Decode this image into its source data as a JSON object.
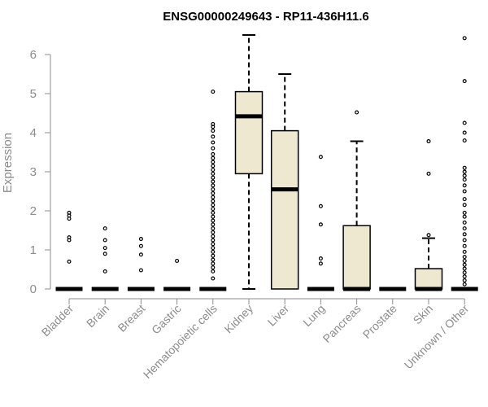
{
  "chart_data": {
    "type": "boxplot",
    "title": "ENSG00000249643 - RP11-436H11.6",
    "ylabel": "Expression",
    "xlabel": "",
    "ylim": [
      0,
      6.5
    ],
    "yticks": [
      0,
      1,
      2,
      3,
      4,
      5,
      6
    ],
    "box_fill": "#efe8d0",
    "categories": [
      "Bladder",
      "Brain",
      "Breast",
      "Gastric",
      "Hematopoietic cells",
      "Kidney",
      "Liver",
      "Lung",
      "Pancreas",
      "Prostate",
      "Skin",
      "Unknown / Other"
    ],
    "boxes": [
      {
        "category": "Bladder",
        "min": 0,
        "q1": 0,
        "median": 0,
        "q3": 0,
        "max": 0,
        "outliers": [
          0.7,
          1.25,
          1.32,
          1.8,
          1.88,
          1.95
        ]
      },
      {
        "category": "Brain",
        "min": 0,
        "q1": 0,
        "median": 0,
        "q3": 0,
        "max": 0,
        "outliers": [
          0.45,
          0.9,
          1.05,
          1.25,
          1.55
        ]
      },
      {
        "category": "Breast",
        "min": 0,
        "q1": 0,
        "median": 0,
        "q3": 0,
        "max": 0,
        "outliers": [
          0.48,
          0.88,
          1.1,
          1.28
        ]
      },
      {
        "category": "Gastric",
        "min": 0,
        "q1": 0,
        "median": 0,
        "q3": 0,
        "max": 0,
        "outliers": [
          0.72
        ]
      },
      {
        "category": "Hematopoietic cells",
        "min": 0,
        "q1": 0,
        "median": 0,
        "q3": 0,
        "max": 0,
        "outliers": [
          0.27,
          0.45,
          0.55,
          0.65,
          0.75,
          0.85,
          0.95,
          1.05,
          1.15,
          1.25,
          1.35,
          1.45,
          1.55,
          1.65,
          1.75,
          1.85,
          1.95,
          2.05,
          2.15,
          2.25,
          2.35,
          2.45,
          2.55,
          2.65,
          2.75,
          2.85,
          2.95,
          3.05,
          3.15,
          3.25,
          3.35,
          3.45,
          3.6,
          3.75,
          3.9,
          4.05,
          4.15,
          4.22,
          5.05
        ]
      },
      {
        "category": "Kidney",
        "min": 0,
        "q1": 2.95,
        "median": 4.42,
        "q3": 5.05,
        "max": 6.5,
        "outliers": []
      },
      {
        "category": "Liver",
        "min": 0,
        "q1": 0,
        "median": 2.55,
        "q3": 4.05,
        "max": 5.5,
        "outliers": []
      },
      {
        "category": "Lung",
        "min": 0,
        "q1": 0,
        "median": 0,
        "q3": 0,
        "max": 0,
        "outliers": [
          0.65,
          0.78,
          1.65,
          2.12,
          3.38
        ]
      },
      {
        "category": "Pancreas",
        "min": 0,
        "q1": 0,
        "median": 0,
        "q3": 1.62,
        "max": 3.78,
        "outliers": [
          4.52
        ]
      },
      {
        "category": "Prostate",
        "min": 0,
        "q1": 0,
        "median": 0,
        "q3": 0,
        "max": 0,
        "outliers": []
      },
      {
        "category": "Skin",
        "min": 0,
        "q1": 0,
        "median": 0,
        "q3": 0.52,
        "max": 1.3,
        "outliers": [
          1.38,
          2.95,
          3.78
        ]
      },
      {
        "category": "Unknown / Other",
        "min": 0,
        "q1": 0,
        "median": 0,
        "q3": 0,
        "max": 0,
        "outliers": [
          0.12,
          0.22,
          0.32,
          0.42,
          0.52,
          0.62,
          0.72,
          0.82,
          0.95,
          1.1,
          1.25,
          1.4,
          1.55,
          1.7,
          1.85,
          1.95,
          2.15,
          2.3,
          2.5,
          2.65,
          2.8,
          2.9,
          3.0,
          3.1,
          3.8,
          4.0,
          4.25,
          5.32,
          6.42
        ]
      }
    ]
  }
}
